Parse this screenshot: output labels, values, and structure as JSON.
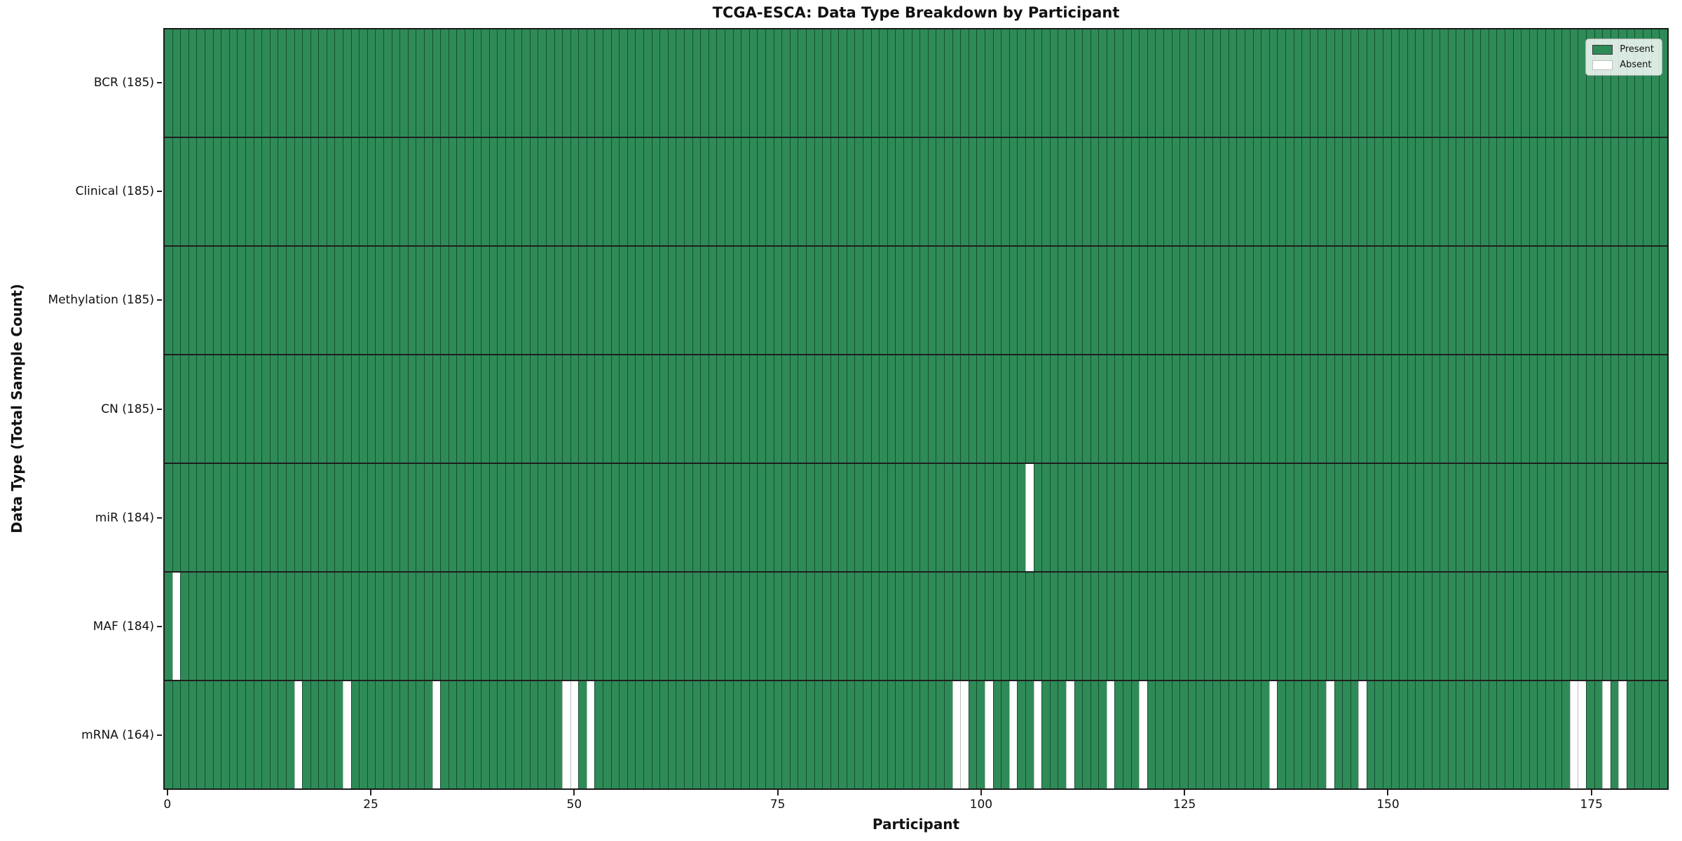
{
  "title": "TCGA-ESCA: Data Type Breakdown by Participant",
  "axes": {
    "xlabel": "Participant",
    "ylabel": "Data Type (Total Sample Count)"
  },
  "legend": {
    "present_label": "Present",
    "absent_label": "Absent"
  },
  "colors": {
    "present": "#2e8b57",
    "absent": "#ffffff",
    "cell_edge": "#1e5435",
    "absent_edge": "#b9beba",
    "frame": "#1a1a1a"
  },
  "chart_data": {
    "type": "heatmap",
    "title": "TCGA-ESCA: Data Type Breakdown by Participant",
    "xlabel": "Participant",
    "ylabel": "Data Type (Total Sample Count)",
    "n_participants": 185,
    "x_ticks": [
      0,
      25,
      50,
      75,
      100,
      125,
      150,
      175
    ],
    "xlim": [
      0,
      185
    ],
    "grid": false,
    "legend_position": "upper right",
    "value_legend": [
      "Present",
      "Absent"
    ],
    "rows": [
      {
        "label": "BCR (185)",
        "data_type": "BCR",
        "total_samples": 185,
        "absent_participants": []
      },
      {
        "label": "Clinical (185)",
        "data_type": "Clinical",
        "total_samples": 185,
        "absent_participants": []
      },
      {
        "label": "Methylation (185)",
        "data_type": "Methylation",
        "total_samples": 185,
        "absent_participants": []
      },
      {
        "label": "CN (185)",
        "data_type": "CN",
        "total_samples": 185,
        "absent_participants": []
      },
      {
        "label": "miR (184)",
        "data_type": "miR",
        "total_samples": 184,
        "absent_participants": [
          106
        ]
      },
      {
        "label": "MAF (184)",
        "data_type": "MAF",
        "total_samples": 184,
        "absent_participants": [
          1
        ]
      },
      {
        "label": "mRNA (164)",
        "data_type": "mRNA",
        "total_samples": 164,
        "absent_participants": [
          16,
          22,
          33,
          49,
          50,
          52,
          97,
          98,
          101,
          104,
          107,
          111,
          116,
          120,
          136,
          143,
          147,
          173,
          174,
          177,
          179
        ]
      }
    ]
  }
}
